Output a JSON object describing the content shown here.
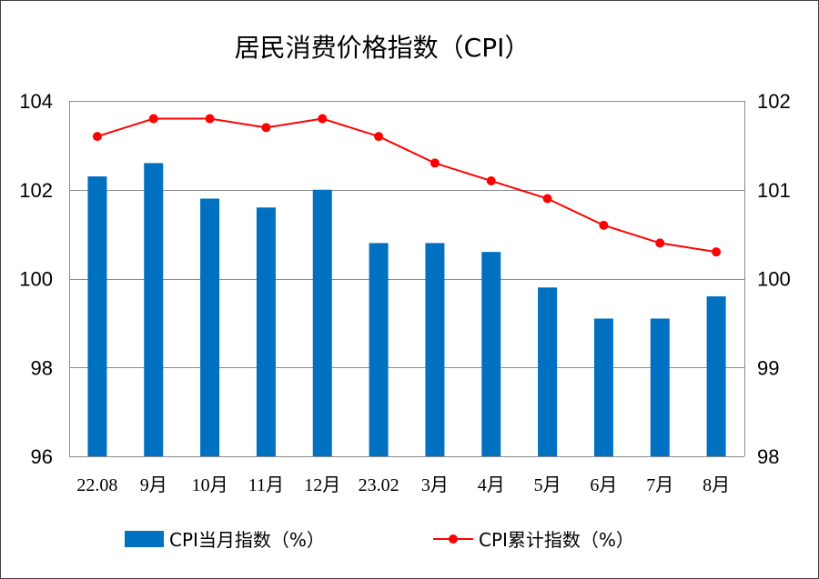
{
  "chart_data": {
    "type": "bar",
    "title": "居民消费价格指数（CPI）",
    "categories": [
      "22.08",
      "9月",
      "10月",
      "11月",
      "12月",
      "23.02",
      "3月",
      "4月",
      "5月",
      "6月",
      "7月",
      "8月"
    ],
    "series": [
      {
        "name": "CPI当月指数（%）",
        "type": "bar",
        "axis": "left",
        "color": "#0070C0",
        "values": [
          102.3,
          102.6,
          101.8,
          101.6,
          102.0,
          100.8,
          100.8,
          100.6,
          99.8,
          99.1,
          99.1,
          99.6
        ]
      },
      {
        "name": "CPI累计指数（%）",
        "type": "line",
        "axis": "right",
        "color": "#FF0000",
        "values": [
          101.6,
          101.8,
          101.8,
          101.7,
          101.8,
          101.6,
          101.3,
          101.1,
          100.9,
          100.6,
          100.4,
          100.3
        ]
      }
    ],
    "y_left": {
      "ylim": [
        96,
        104
      ],
      "ticks": [
        96,
        98,
        100,
        102,
        104
      ]
    },
    "y_right": {
      "ylim": [
        98,
        102
      ],
      "ticks": [
        98,
        99,
        100,
        101,
        102
      ]
    },
    "grid": true,
    "legend": "bottom",
    "colors": {
      "gridline": "#8C8C8C",
      "border": "#404040"
    }
  }
}
